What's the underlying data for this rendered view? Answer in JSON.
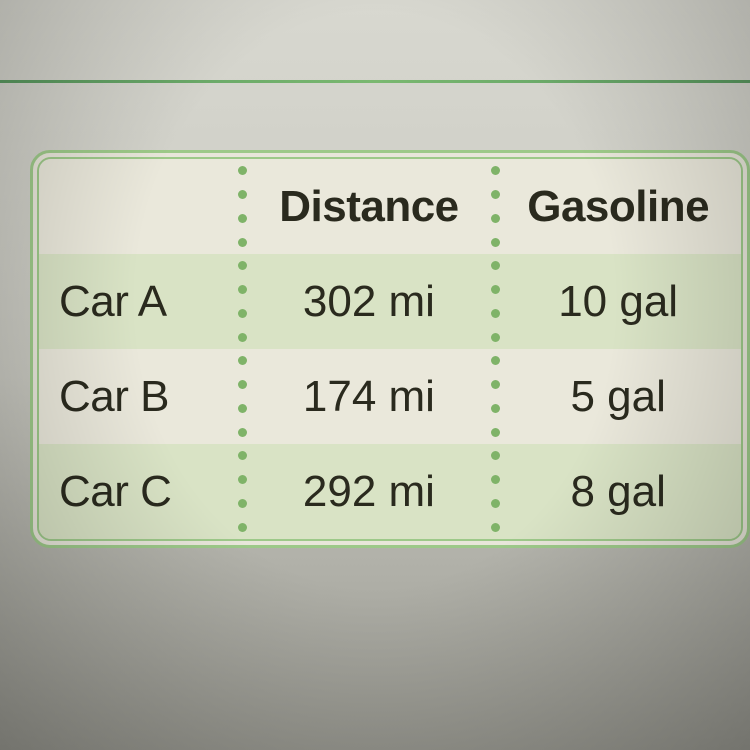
{
  "table": {
    "type": "table",
    "columns": [
      "",
      "Distance",
      "Gasoline"
    ],
    "rows": [
      {
        "label": "Car A",
        "distance": "302 mi",
        "gasoline": "10 gal",
        "stripe": "a"
      },
      {
        "label": "Car B",
        "distance": "174 mi",
        "gasoline": "5 gal",
        "stripe": "b"
      },
      {
        "label": "Car C",
        "distance": "292 mi",
        "gasoline": "8 gal",
        "stripe": "a"
      }
    ],
    "border_color": "#9dc989",
    "dot_color": "#7fb368",
    "header_bg": "#eae8db",
    "stripe_a_bg": "#d9e3c5",
    "stripe_b_bg": "#eae8db",
    "text_color": "#2a2a1e",
    "header_fontsize": 44,
    "cell_fontsize": 44,
    "border_radius": 20,
    "col_widths": [
      "29%",
      "36%",
      "35%"
    ]
  }
}
